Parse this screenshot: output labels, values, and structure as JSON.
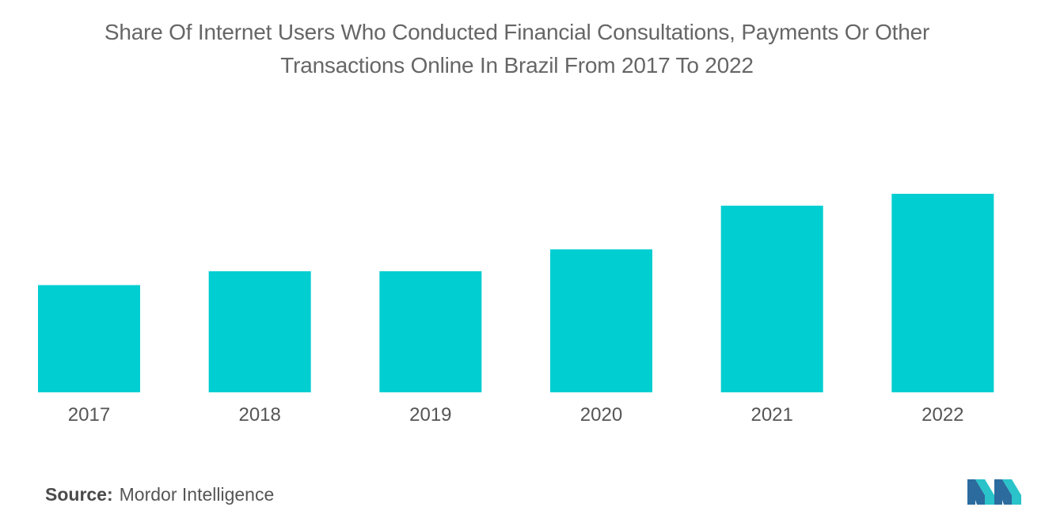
{
  "title_lines": [
    "Share Of Internet Users Who Conducted Financial Consultations, Payments Or Other",
    "Transactions Online In Brazil From 2017 To 2022"
  ],
  "source": {
    "label": "Source:",
    "value": "Mordor Intelligence"
  },
  "logo_icon": "mordor-intelligence-logo-icon",
  "colors": {
    "bar": "#00CED1",
    "text": "#666666",
    "logo_teal": "#29C3C9",
    "logo_blue": "#2B6B9E"
  },
  "chart_data": {
    "type": "bar",
    "title": "Share Of Internet Users Who Conducted Financial Consultations, Payments Or Other Transactions Online In Brazil From 2017 To 2022",
    "xlabel": "",
    "ylabel": "",
    "categories": [
      "2017",
      "2018",
      "2019",
      "2020",
      "2021",
      "2022"
    ],
    "values": [
      54,
      61,
      61,
      72,
      94,
      100
    ],
    "ylim": [
      0,
      100
    ],
    "grid": false,
    "legend": "none"
  }
}
